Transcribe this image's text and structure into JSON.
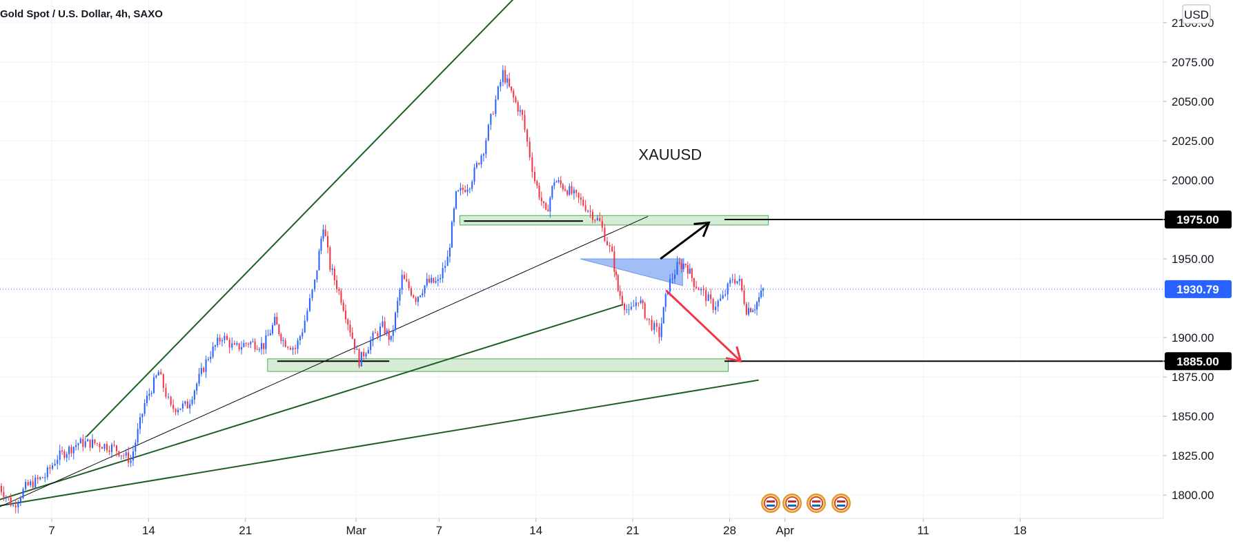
{
  "header": {
    "title": "Gold Spot / U.S. Dollar, 4h, SAXO",
    "currency": "USD"
  },
  "colors": {
    "up": "#2962ff",
    "down": "#f23645",
    "trend": "#1b5e20",
    "zone_fill": "#c8e6c9",
    "zone_stroke": "#4caf50",
    "pennant": "#90b4f4"
  },
  "chart_data": {
    "type": "candlestick",
    "title": "Gold Spot / U.S. Dollar, 4h, SAXO",
    "y_axis": {
      "min": 1790,
      "max": 2110,
      "position": "right",
      "ticks": [
        {
          "value": 2100,
          "label": "2100.00"
        },
        {
          "value": 2075,
          "label": "2075.00"
        },
        {
          "value": 2050,
          "label": "2050.00"
        },
        {
          "value": 2025,
          "label": "2025.00"
        },
        {
          "value": 2000,
          "label": "2000.00"
        },
        {
          "value": 1950,
          "label": "1950.00"
        },
        {
          "value": 1900,
          "label": "1900.00"
        },
        {
          "value": 1875,
          "label": "1875.00"
        },
        {
          "value": 1850,
          "label": "1850.00"
        },
        {
          "value": 1825,
          "label": "1825.00"
        },
        {
          "value": 1800,
          "label": "1800.00"
        }
      ]
    },
    "x_axis": {
      "ticks": [
        {
          "day": 7,
          "label": "7"
        },
        {
          "day": 14,
          "label": "14"
        },
        {
          "day": 21,
          "label": "21"
        },
        {
          "day": 29,
          "label": "Mar"
        },
        {
          "day": 35,
          "label": "7"
        },
        {
          "day": 42,
          "label": "14"
        },
        {
          "day": 49,
          "label": "21"
        },
        {
          "day": 56,
          "label": "28"
        },
        {
          "day": 60,
          "label": "Apr"
        },
        {
          "day": 70,
          "label": "11"
        },
        {
          "day": 77,
          "label": "18"
        }
      ]
    },
    "series_path": [
      [
        3.1,
        1808
      ],
      [
        4.3,
        1793
      ],
      [
        5.2,
        1805
      ],
      [
        6.6,
        1812
      ],
      [
        7.5,
        1824
      ],
      [
        9.0,
        1833
      ],
      [
        10.2,
        1833
      ],
      [
        11.6,
        1830
      ],
      [
        12.8,
        1822
      ],
      [
        13.8,
        1858
      ],
      [
        14.8,
        1878
      ],
      [
        15.7,
        1855
      ],
      [
        16.9,
        1857
      ],
      [
        18.4,
        1888
      ],
      [
        19.4,
        1901
      ],
      [
        20.3,
        1893
      ],
      [
        21.3,
        1897
      ],
      [
        22.4,
        1895
      ],
      [
        23.2,
        1910
      ],
      [
        23.8,
        1898
      ],
      [
        24.7,
        1893
      ],
      [
        25.2,
        1905
      ],
      [
        26.1,
        1935
      ],
      [
        26.7,
        1972
      ],
      [
        27.2,
        1945
      ],
      [
        28.0,
        1925
      ],
      [
        29.3,
        1885
      ],
      [
        30.3,
        1900
      ],
      [
        31.0,
        1907
      ],
      [
        31.6,
        1898
      ],
      [
        32.4,
        1938
      ],
      [
        33.4,
        1925
      ],
      [
        34.2,
        1935
      ],
      [
        35.0,
        1935
      ],
      [
        35.7,
        1950
      ],
      [
        36.3,
        1990
      ],
      [
        37.3,
        1998
      ],
      [
        38.3,
        2020
      ],
      [
        39.0,
        2045
      ],
      [
        39.7,
        2068
      ],
      [
        40.3,
        2055
      ],
      [
        41.1,
        2040
      ],
      [
        42.0,
        2000
      ],
      [
        42.8,
        1978
      ],
      [
        43.4,
        2000
      ],
      [
        44.5,
        1993
      ],
      [
        45.5,
        1985
      ],
      [
        46.7,
        1973
      ],
      [
        47.6,
        1952
      ],
      [
        48.0,
        1930
      ],
      [
        48.8,
        1915
      ],
      [
        49.5,
        1925
      ],
      [
        50.1,
        1912
      ],
      [
        51.0,
        1902
      ],
      [
        51.6,
        1932
      ],
      [
        52.3,
        1945
      ],
      [
        52.9,
        1947
      ],
      [
        53.5,
        1935
      ],
      [
        54.2,
        1928
      ],
      [
        54.9,
        1920
      ],
      [
        55.6,
        1925
      ],
      [
        56.3,
        1938
      ],
      [
        56.8,
        1935
      ],
      [
        57.3,
        1918
      ],
      [
        57.9,
        1920
      ],
      [
        58.5,
        1930
      ]
    ],
    "current_price": {
      "value": 1930.79,
      "label": "1930.79"
    },
    "levels": [
      {
        "value": 1975,
        "label": "1975.00"
      },
      {
        "value": 1885,
        "label": "1885.00"
      }
    ],
    "zones": [
      {
        "from_day": 36.5,
        "to_day": 58.8,
        "low": 1971.5,
        "high": 1977.5
      },
      {
        "from_day": 22.6,
        "to_day": 55.9,
        "low": 1878.5,
        "high": 1886.5
      }
    ],
    "trendlines": [
      {
        "style": "green",
        "points": [
          [
            9.5,
            1837
          ],
          [
            40.6,
            2117
          ]
        ]
      },
      {
        "style": "green",
        "points": [
          [
            3.2,
            1797
          ],
          [
            48.3,
            1921
          ]
        ]
      },
      {
        "style": "green",
        "points": [
          [
            3.1,
            1793
          ],
          [
            58.1,
            1873
          ]
        ]
      },
      {
        "style": "black",
        "points": [
          [
            3.1,
            1792
          ],
          [
            50.1,
            1977
          ]
        ]
      },
      {
        "style": "black-h",
        "points": [
          [
            36.8,
            1974
          ],
          [
            45.4,
            1974
          ]
        ]
      },
      {
        "style": "black-h",
        "points": [
          [
            23.3,
            1885
          ],
          [
            31.4,
            1885
          ]
        ]
      }
    ],
    "pennant": {
      "points": [
        [
          45.2,
          1950
        ],
        [
          52.6,
          1950
        ],
        [
          52.6,
          1933
        ]
      ]
    },
    "arrows": [
      {
        "color": "up",
        "from": [
          51.0,
          1950
        ],
        "to": [
          54.5,
          1973
        ]
      },
      {
        "color": "down",
        "from": [
          51.4,
          1930
        ],
        "to": [
          56.8,
          1885
        ]
      }
    ],
    "annotation": {
      "text": "XAUUSD",
      "day": 51.7,
      "value": 2013
    }
  }
}
